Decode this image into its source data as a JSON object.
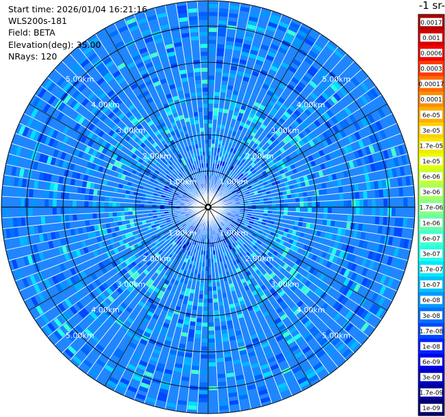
{
  "header": {
    "start_time": "Start time: 2026/01/04 16:21:16",
    "device": "WLS200s-181",
    "field": "Field: BETA",
    "elevation": "Elevation(deg): 35.00",
    "nrays": "NRays: 120"
  },
  "colorbar": {
    "unit_label": "-1 sr-",
    "labels": [
      "0.0017",
      "0.001",
      "0.0006",
      "0.0003",
      "0.00017",
      "0.0001",
      "6e-05",
      "3e-05",
      "1.7e-05",
      "1e-05",
      "6e-06",
      "3e-06",
      "1.7e-06",
      "1e-06",
      "6e-07",
      "3e-07",
      "1.7e-07",
      "1e-07",
      "6e-08",
      "3e-08",
      "1.7e-08",
      "1e-08",
      "6e-09",
      "3e-09",
      "1.7e-09",
      "1e-09"
    ],
    "colors": [
      "#b00000",
      "#d40000",
      "#f20000",
      "#ff3b00",
      "#ff6a00",
      "#ff8c00",
      "#ffae00",
      "#ffcf00",
      "#f5e800",
      "#e8ff00",
      "#c8ff30",
      "#a8ff60",
      "#88ff88",
      "#66ffaa",
      "#44ffcc",
      "#22ffe8",
      "#00e8ff",
      "#00c0ff",
      "#0098ff",
      "#0070ff",
      "#0048ff",
      "#0020ff",
      "#0000e8",
      "#0000c0",
      "#000098",
      "#000070"
    ]
  },
  "chart_data": {
    "type": "heatmap",
    "projection": "polar PPI scan",
    "field": "BETA",
    "rays": 120,
    "range_km_max": 5.7,
    "range_rings_km": [
      1.0,
      2.0,
      3.0,
      4.0,
      5.0
    ],
    "ring_labels": {
      "1": "1.00km",
      "2": "2.00km",
      "3": "3.00km",
      "4": "4.00km",
      "5": "5.00km"
    },
    "dominant_values": "mostly 3e-08 to 1e-07 (blue); enhanced ring near 2-3 km reaching 1.7e-07 to 3e-07 (cyan)"
  }
}
